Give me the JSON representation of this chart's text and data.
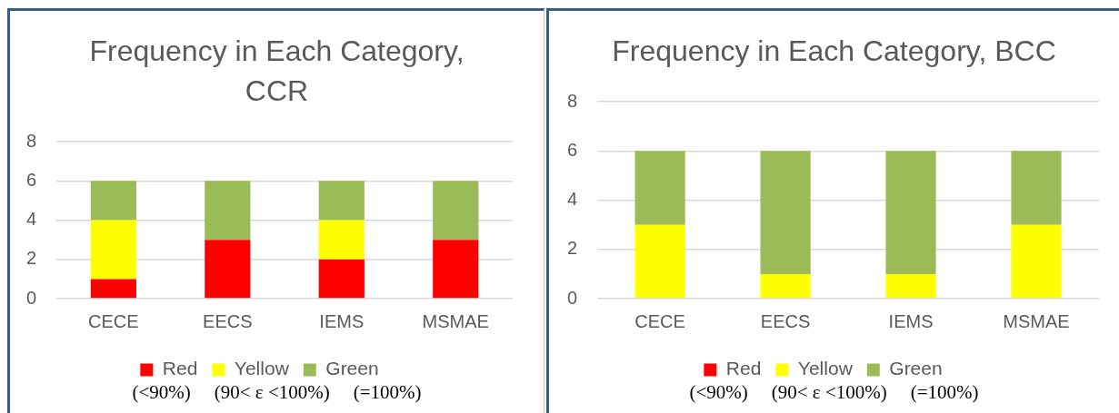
{
  "chart_data": [
    {
      "type": "bar",
      "title": "Frequency in Each Category, CCR",
      "categories": [
        "CECE",
        "EECS",
        "IEMS",
        "MSMAE"
      ],
      "series": [
        {
          "name": "Red",
          "color": "#ff0000",
          "values": [
            1,
            3,
            2,
            3
          ]
        },
        {
          "name": "Yellow",
          "color": "#ffff00",
          "values": [
            3,
            0,
            2,
            0
          ]
        },
        {
          "name": "Green",
          "color": "#9bbb59",
          "values": [
            2,
            3,
            2,
            3
          ]
        }
      ],
      "stacked": true,
      "ylim": [
        0,
        8
      ],
      "yticks": [
        0,
        2,
        4,
        6,
        8
      ],
      "grid": "y",
      "legend": "bottom",
      "annotations": [
        "(<90%)",
        "(90< ε <100%)",
        "(=100%)"
      ]
    },
    {
      "type": "bar",
      "title": "Frequency in Each Category, BCC",
      "categories": [
        "CECE",
        "EECS",
        "IEMS",
        "MSMAE"
      ],
      "series": [
        {
          "name": "Red",
          "color": "#ff0000",
          "values": [
            0,
            0,
            0,
            0
          ]
        },
        {
          "name": "Yellow",
          "color": "#ffff00",
          "values": [
            3,
            1,
            1,
            3
          ]
        },
        {
          "name": "Green",
          "color": "#9bbb59",
          "values": [
            3,
            5,
            5,
            3
          ]
        }
      ],
      "stacked": true,
      "ylim": [
        0,
        8
      ],
      "yticks": [
        0,
        2,
        4,
        6,
        8
      ],
      "grid": "y",
      "legend": "bottom",
      "annotations": [
        "(<90%)",
        "(90< ε <100%)",
        "(=100%)"
      ]
    }
  ]
}
